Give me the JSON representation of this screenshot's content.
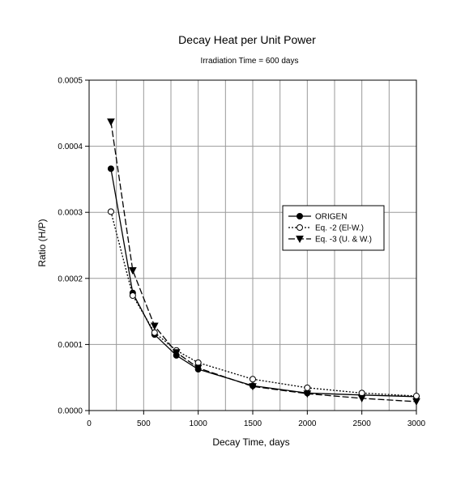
{
  "chart_data": {
    "type": "line",
    "title": "Decay Heat per Unit Power",
    "subtitle": "Irradiation Time = 600 days",
    "xlabel": "Decay Time, days",
    "ylabel": "Ratio (H/P)",
    "xlim": [
      0,
      3000
    ],
    "ylim": [
      0,
      0.0005
    ],
    "x_ticks": [
      0,
      500,
      1000,
      1500,
      2000,
      2500,
      3000
    ],
    "x_tick_labels": [
      "0",
      "500",
      "1000",
      "1500",
      "2000",
      "2500",
      "3000"
    ],
    "y_ticks": [
      0,
      0.0001,
      0.0002,
      0.0003,
      0.0004,
      0.0005
    ],
    "y_tick_labels": [
      "0.0000",
      "0.0001",
      "0.0002",
      "0.0003",
      "0.0004",
      "0.0005"
    ],
    "x_minor_step": 250,
    "grid": true,
    "legend_position": "right-middle",
    "series": [
      {
        "name": "ORIGEN",
        "line": "solid",
        "marker": "filled-circle",
        "color": "#000000",
        "x": [
          200,
          400,
          600,
          800,
          1000,
          1500,
          2000,
          2500,
          3000
        ],
        "y": [
          0.000366,
          0.000178,
          0.000115,
          8.35e-05,
          6.25e-05,
          3.75e-05,
          2.65e-05,
          2.35e-05,
          2.1e-05
        ]
      },
      {
        "name": "Eq. -2 (El-W.)",
        "line": "dotted",
        "marker": "open-circle",
        "color": "#000000",
        "x": [
          200,
          400,
          600,
          800,
          1000,
          1500,
          2000,
          2500,
          3000
        ],
        "y": [
          0.000301,
          0.000174,
          0.000118,
          9.1e-05,
          7.25e-05,
          4.75e-05,
          3.45e-05,
          2.65e-05,
          2.2e-05
        ]
      },
      {
        "name": "Eq. -3 (U. & W.)",
        "line": "dashed",
        "marker": "filled-triangle-down",
        "color": "#000000",
        "x": [
          200,
          400,
          600,
          800,
          1000,
          1500,
          2000,
          2500,
          3000
        ],
        "y": [
          0.000437,
          0.000212,
          0.000128,
          8.8e-05,
          6.45e-05,
          3.65e-05,
          2.55e-05,
          1.85e-05,
          1.35e-05
        ]
      }
    ]
  }
}
